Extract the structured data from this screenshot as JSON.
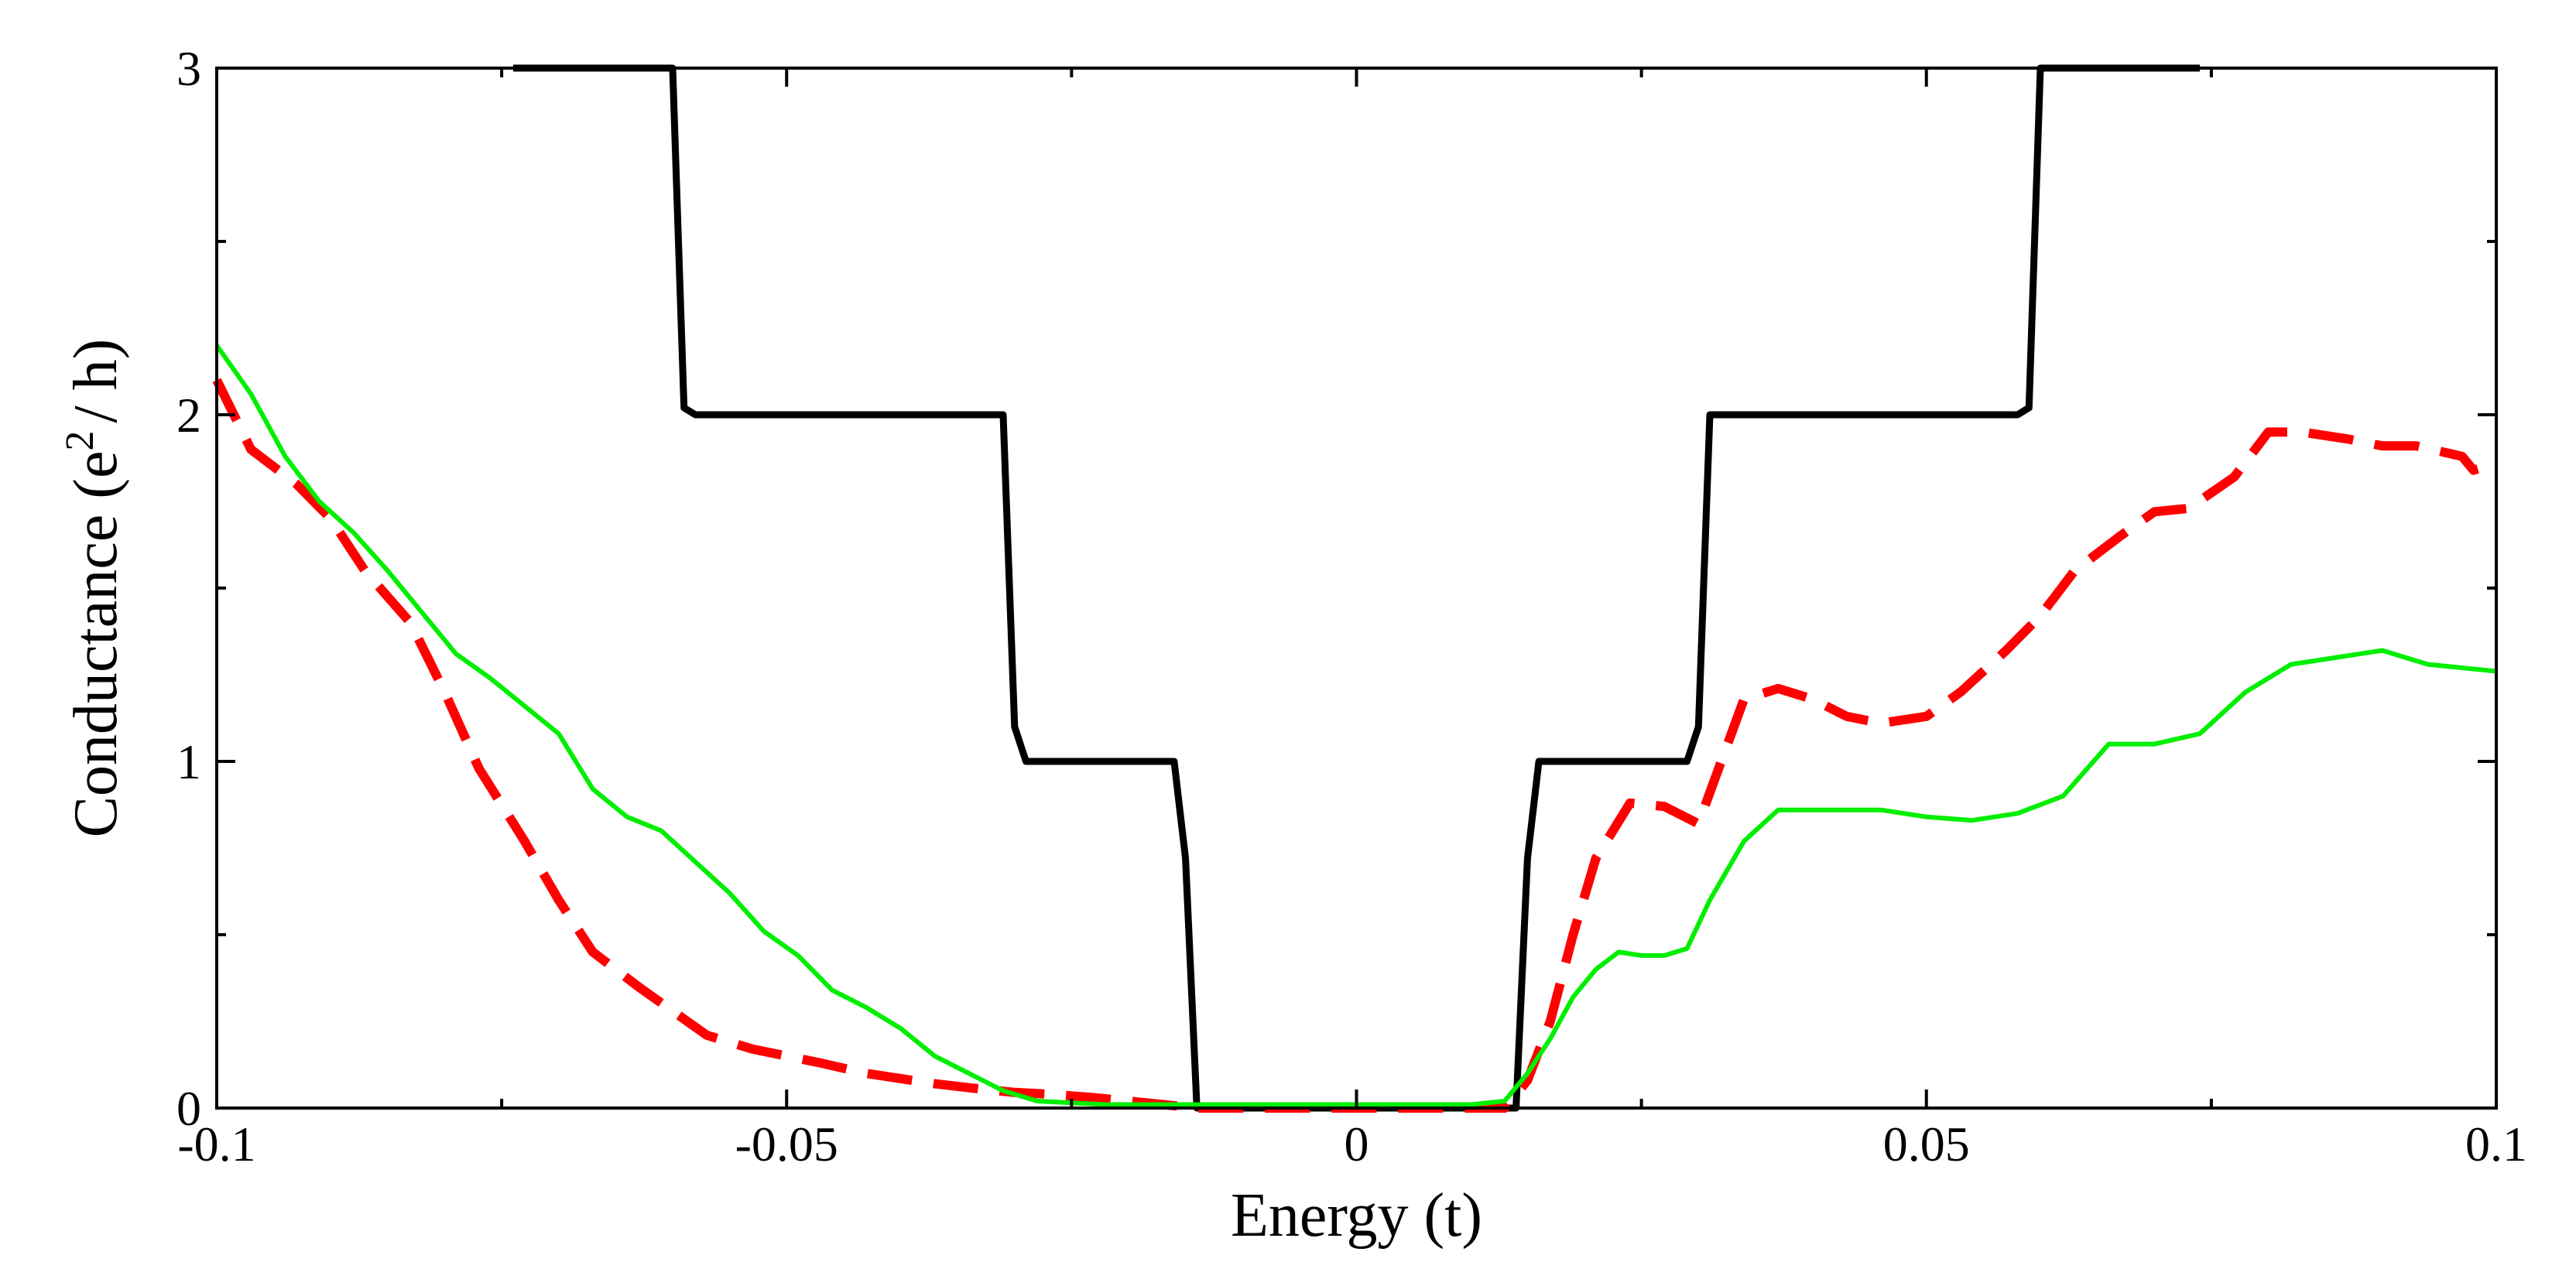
{
  "chart_data": {
    "type": "line",
    "title": "",
    "xlabel": "Energy (t)",
    "ylabel_parts": {
      "prefix": "Conductance (e",
      "sup": "2",
      "suffix": "/ h)"
    },
    "xlim": [
      -0.1,
      0.1
    ],
    "ylim": [
      0,
      3
    ],
    "x_ticks": [
      -0.1,
      -0.05,
      0,
      0.05,
      0.1
    ],
    "x_tick_labels": [
      "-0.1",
      "-0.05",
      "0",
      "0.05",
      "0.1"
    ],
    "y_ticks": [
      0,
      1,
      2,
      3
    ],
    "y_tick_labels": [
      "0",
      "1",
      "2",
      "3"
    ],
    "grid": false,
    "legend": "none",
    "series": [
      {
        "name": "black-solid",
        "color": "#000000",
        "style": "solid",
        "x": [
          -0.074,
          -0.06,
          -0.059,
          -0.058,
          -0.031,
          -0.03,
          -0.029,
          -0.016,
          -0.015,
          -0.014,
          0.014,
          0.015,
          0.016,
          0.029,
          0.03,
          0.031,
          0.058,
          0.059,
          0.06,
          0.074
        ],
        "y": [
          3,
          3,
          2.02,
          2,
          2,
          1.1,
          1,
          1,
          0.72,
          0,
          0,
          0.72,
          1,
          1,
          1.1,
          2,
          2,
          2.02,
          3,
          3
        ]
      },
      {
        "name": "red-dashed",
        "color": "#ff0000",
        "style": "dashed",
        "x": [
          -0.1,
          -0.097,
          -0.093,
          -0.09,
          -0.087,
          -0.083,
          -0.08,
          -0.077,
          -0.073,
          -0.07,
          -0.067,
          -0.063,
          -0.06,
          -0.057,
          -0.053,
          -0.05,
          -0.047,
          -0.043,
          -0.04,
          -0.037,
          -0.033,
          -0.03,
          -0.027,
          -0.023,
          -0.02,
          -0.017,
          -0.014,
          -0.012,
          -0.01,
          -0.005,
          0,
          0.005,
          0.01,
          0.013,
          0.015,
          0.017,
          0.019,
          0.021,
          0.024,
          0.027,
          0.03,
          0.032,
          0.034,
          0.037,
          0.04,
          0.043,
          0.046,
          0.05,
          0.053,
          0.057,
          0.06,
          0.063,
          0.067,
          0.07,
          0.073,
          0.077,
          0.08,
          0.083,
          0.087,
          0.09,
          0.093,
          0.097,
          0.098,
          0.1
        ],
        "y": [
          2.1,
          1.9,
          1.8,
          1.7,
          1.55,
          1.4,
          1.2,
          0.98,
          0.77,
          0.6,
          0.45,
          0.35,
          0.28,
          0.21,
          0.17,
          0.15,
          0.13,
          0.1,
          0.085,
          0.07,
          0.055,
          0.045,
          0.04,
          0.03,
          0.02,
          0.01,
          0.0,
          0.0,
          0.0,
          0.0,
          0.0,
          0.0,
          0.0,
          0.0,
          0.08,
          0.25,
          0.5,
          0.72,
          0.88,
          0.87,
          0.82,
          1.0,
          1.18,
          1.21,
          1.18,
          1.13,
          1.11,
          1.13,
          1.2,
          1.32,
          1.42,
          1.55,
          1.65,
          1.72,
          1.73,
          1.82,
          1.95,
          1.95,
          1.93,
          1.91,
          1.91,
          1.88,
          1.84,
          1.86
        ]
      },
      {
        "name": "green-solid",
        "color": "#00ee00",
        "style": "solid",
        "x": [
          -0.1,
          -0.097,
          -0.094,
          -0.091,
          -0.088,
          -0.085,
          -0.082,
          -0.079,
          -0.076,
          -0.073,
          -0.07,
          -0.067,
          -0.064,
          -0.061,
          -0.058,
          -0.055,
          -0.052,
          -0.049,
          -0.046,
          -0.043,
          -0.04,
          -0.037,
          -0.034,
          -0.031,
          -0.028,
          -0.025,
          -0.022,
          -0.019,
          -0.016,
          -0.014,
          -0.012,
          -0.01,
          -0.005,
          0,
          0.005,
          0.01,
          0.013,
          0.015,
          0.017,
          0.019,
          0.021,
          0.023,
          0.025,
          0.027,
          0.029,
          0.031,
          0.034,
          0.037,
          0.04,
          0.043,
          0.046,
          0.05,
          0.054,
          0.058,
          0.062,
          0.066,
          0.07,
          0.074,
          0.078,
          0.082,
          0.086,
          0.09,
          0.094,
          0.1
        ],
        "y": [
          2.2,
          2.06,
          1.88,
          1.75,
          1.66,
          1.55,
          1.43,
          1.31,
          1.24,
          1.16,
          1.08,
          0.92,
          0.84,
          0.8,
          0.71,
          0.62,
          0.51,
          0.44,
          0.34,
          0.29,
          0.23,
          0.15,
          0.1,
          0.05,
          0.02,
          0.015,
          0.01,
          0.01,
          0.01,
          0.01,
          0.01,
          0.01,
          0.01,
          0.01,
          0.01,
          0.01,
          0.02,
          0.1,
          0.2,
          0.32,
          0.4,
          0.45,
          0.44,
          0.44,
          0.46,
          0.6,
          0.77,
          0.86,
          0.86,
          0.86,
          0.86,
          0.84,
          0.83,
          0.85,
          0.9,
          1.05,
          1.05,
          1.08,
          1.2,
          1.28,
          1.3,
          1.32,
          1.28,
          1.26
        ]
      }
    ]
  }
}
